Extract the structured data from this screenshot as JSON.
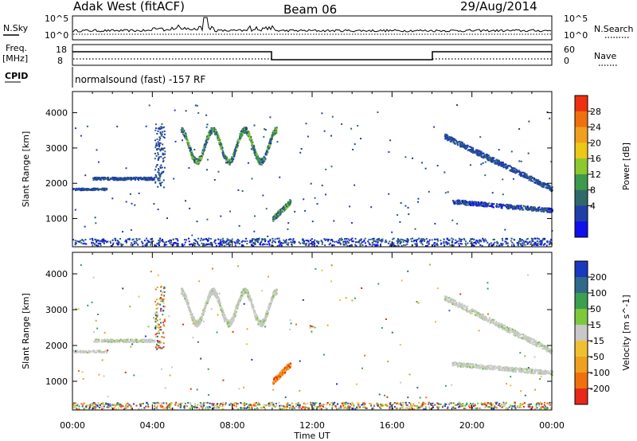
{
  "header": {
    "station": "Adak West (fitACF)",
    "beam": "Beam 06",
    "date": "29/Aug/2014"
  },
  "top_panels": {
    "nsky_label": "N.Sky",
    "nsky_ticks": [
      "10^5",
      "10^0"
    ],
    "nsearch_label": "N.Search",
    "nsearch_ticks": [
      "10^5",
      "10^0"
    ],
    "freq_label_line1": "Freq.",
    "freq_label_line2": "[MHz]",
    "freq_ticks": [
      "18",
      "8"
    ],
    "nave_label": "Nave",
    "nave_ticks": [
      "60",
      "0"
    ],
    "cpid_label": "CPID",
    "cpid_text": "normalsound (fast) -157 RF"
  },
  "chart_data": [
    {
      "type": "heatmap",
      "name": "power",
      "xlabel": "Time UT",
      "ylabel": "Slant Range [km]",
      "xlim": [
        0,
        24
      ],
      "ylim": [
        200,
        4600
      ],
      "x_ticks": [
        "00:00",
        "04:00",
        "08:00",
        "12:00",
        "16:00",
        "20:00",
        "00:00"
      ],
      "y_ticks": [
        "1000",
        "2000",
        "3000",
        "4000"
      ],
      "colorbar": {
        "label": "Power [dB]",
        "ticks": [
          "28",
          "24",
          "20",
          "16",
          "12",
          "8",
          "4"
        ],
        "colors": [
          "#1010ee",
          "#2040a8",
          "#2f6a6a",
          "#3c9a4c",
          "#8cc830",
          "#ecc818",
          "#f0a020",
          "#f07010",
          "#ee3010"
        ]
      },
      "features": [
        {
          "t_start": 0.0,
          "t_end": 1.7,
          "range_km": 1850,
          "level": "low"
        },
        {
          "t_start": 1.0,
          "t_end": 4.1,
          "range_km": 2150,
          "level": "low"
        },
        {
          "t_start": 5.4,
          "t_end": 10.2,
          "range_km": 2900,
          "level": "high"
        },
        {
          "t_start": 10.0,
          "t_end": 10.9,
          "range_km": 1200,
          "level": "high"
        },
        {
          "t_start": 18.6,
          "t_end": 24.0,
          "range_km": 1900,
          "level": "low"
        },
        {
          "t_start": 19.0,
          "t_end": 24.0,
          "range_km": 1300,
          "level": "medium"
        }
      ]
    },
    {
      "type": "heatmap",
      "name": "velocity",
      "xlabel": "Time UT",
      "ylabel": "Slant Range [km]",
      "xlim": [
        0,
        24
      ],
      "ylim": [
        200,
        4600
      ],
      "x_ticks": [
        "00:00",
        "04:00",
        "08:00",
        "12:00",
        "16:00",
        "20:00",
        "00:00"
      ],
      "y_ticks": [
        "1000",
        "2000",
        "3000",
        "4000"
      ],
      "colorbar": {
        "label": "Velocity [m s^-1]",
        "ticks": [
          "200",
          "100",
          "50",
          "15",
          "-15",
          "-50",
          "-100",
          "-200"
        ],
        "colors": [
          "#1a38c0",
          "#2e6a8a",
          "#3aa050",
          "#7ec83c",
          "#c8c8c8",
          "#f0c030",
          "#f0a020",
          "#f07010",
          "#e82818"
        ]
      },
      "features": [
        {
          "t_start": 1.0,
          "t_end": 4.1,
          "range_km": 2150,
          "velocity": "near zero"
        },
        {
          "t_start": 5.4,
          "t_end": 10.2,
          "range_km": 2900,
          "velocity": "near zero"
        },
        {
          "t_start": 10.0,
          "t_end": 10.9,
          "range_km": 1200,
          "velocity": "strongly negative"
        },
        {
          "t_start": 18.6,
          "t_end": 24.0,
          "range_km": 1900,
          "velocity": "near zero"
        }
      ]
    }
  ]
}
